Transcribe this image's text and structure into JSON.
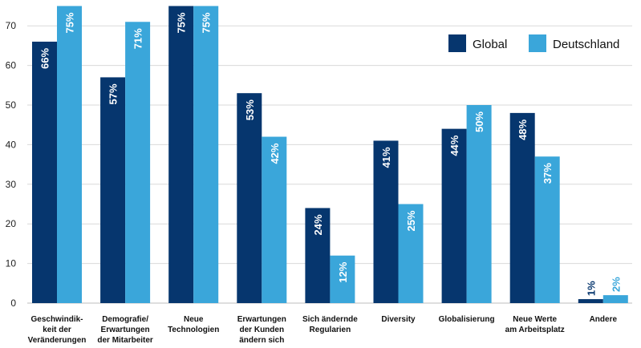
{
  "chart_data": {
    "type": "bar",
    "title": "",
    "xlabel": "",
    "ylabel": "",
    "ylim": [
      0,
      75
    ],
    "yticks": [
      0,
      10,
      20,
      30,
      40,
      50,
      60,
      70
    ],
    "grid": true,
    "legend_position": "top-right",
    "value_suffix": "%",
    "categories": [
      [
        "Geschwindik-",
        "keit der",
        "Veränderungen"
      ],
      [
        "Demografie/",
        "Erwartungen",
        "der Mitarbeiter"
      ],
      [
        "Neue",
        "Technologien"
      ],
      [
        "Erwartungen",
        "der Kunden",
        "ändern sich"
      ],
      [
        "Sich ändernde",
        "Regularien"
      ],
      [
        "Diversity"
      ],
      [
        "Globalisierung"
      ],
      [
        "Neue Werte",
        "am Arbeitsplatz"
      ],
      [
        "Andere"
      ]
    ],
    "series": [
      {
        "name": "Global",
        "color": "#06366e",
        "values": [
          66,
          57,
          75,
          53,
          24,
          41,
          44,
          48,
          1
        ]
      },
      {
        "name": "Deutschland",
        "color": "#3aa6da",
        "values": [
          75,
          71,
          75,
          42,
          12,
          25,
          50,
          37,
          2
        ]
      }
    ]
  }
}
